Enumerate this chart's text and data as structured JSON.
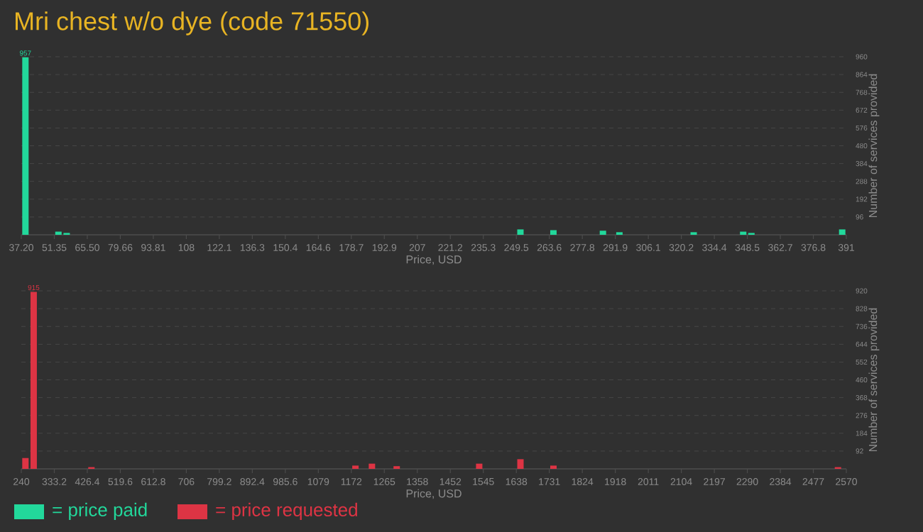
{
  "chart_data": [
    {
      "type": "bar",
      "title": "Mri chest w/o dye (code 71550)",
      "xlabel": "Price, USD",
      "ylabel": "Number of services provided",
      "xlim": [
        37.2,
        391
      ],
      "xticks": [
        {
          "value": 37.2,
          "label": "37.20"
        },
        {
          "value": 51.352,
          "label": "51.35"
        },
        {
          "value": 65.504,
          "label": "65.50"
        },
        {
          "value": 79.656,
          "label": "79.66"
        },
        {
          "value": 93.808,
          "label": "93.81"
        },
        {
          "value": 107.96,
          "label": "108"
        },
        {
          "value": 122.112,
          "label": "122.1"
        },
        {
          "value": 136.264,
          "label": "136.3"
        },
        {
          "value": 150.416,
          "label": "150.4"
        },
        {
          "value": 164.568,
          "label": "164.6"
        },
        {
          "value": 178.72,
          "label": "178.7"
        },
        {
          "value": 192.872,
          "label": "192.9"
        },
        {
          "value": 207.024,
          "label": "207"
        },
        {
          "value": 221.176,
          "label": "221.2"
        },
        {
          "value": 235.328,
          "label": "235.3"
        },
        {
          "value": 249.48,
          "label": "249.5"
        },
        {
          "value": 263.632,
          "label": "263.6"
        },
        {
          "value": 277.784,
          "label": "277.8"
        },
        {
          "value": 291.936,
          "label": "291.9"
        },
        {
          "value": 306.088,
          "label": "306.1"
        },
        {
          "value": 320.24,
          "label": "320.2"
        },
        {
          "value": 334.392,
          "label": "334.4"
        },
        {
          "value": 348.544,
          "label": "348.5"
        },
        {
          "value": 362.696,
          "label": "362.7"
        },
        {
          "value": 376.848,
          "label": "376.8"
        },
        391
      ],
      "ylim": [
        0,
        960
      ],
      "yticks": [
        96,
        192,
        288,
        384,
        480,
        576,
        672,
        768,
        864,
        960
      ],
      "grid": "y",
      "legend": "bottom left",
      "series": [
        {
          "name": "= price paid",
          "color": "#22d89b",
          "x": [
            38.97,
            53.12,
            56.66,
            251.24,
            265.39,
            286.62,
            293.69,
            325.54,
            346.77,
            350.3,
            389.23
          ],
          "values": [
            957,
            17,
            10,
            29,
            25,
            22,
            14,
            14,
            17,
            10,
            29
          ],
          "value_labels": [
            "957",
            null,
            null,
            null,
            null,
            null,
            null,
            null,
            null,
            null,
            null
          ]
        }
      ]
    },
    {
      "type": "bar",
      "xlabel": "Price, USD",
      "ylabel": "Number of services provided",
      "xlim": [
        240,
        2570
      ],
      "xticks": [
        240,
        333.2,
        426.4,
        519.6,
        612.8,
        706,
        799.2,
        892.4,
        985.6,
        {
          "value": 1078.8,
          "label": "1079"
        },
        1172,
        {
          "value": 1265.2,
          "label": "1265"
        },
        {
          "value": 1358.4,
          "label": "1358"
        },
        {
          "value": 1451.6,
          "label": "1452"
        },
        {
          "value": 1544.8,
          "label": "1545"
        },
        1638,
        {
          "value": 1731.2,
          "label": "1731"
        },
        {
          "value": 1824.4,
          "label": "1824"
        },
        {
          "value": 1917.6,
          "label": "1918"
        },
        {
          "value": 2010.8,
          "label": "2011"
        },
        2104,
        {
          "value": 2197.2,
          "label": "2197"
        },
        {
          "value": 2290.4,
          "label": "2290"
        },
        {
          "value": 2383.6,
          "label": "2384"
        },
        {
          "value": 2476.8,
          "label": "2477"
        },
        2570
      ],
      "ylim": [
        0,
        920
      ],
      "yticks": [
        92,
        184,
        276,
        368,
        460,
        552,
        644,
        736,
        828,
        920
      ],
      "grid": "y",
      "legend": "bottom left",
      "series": [
        {
          "name": "= price requested",
          "color": "#dd3444",
          "x": [
            251.65,
            274.95,
            438.05,
            1183.65,
            1230.25,
            1300.15,
            1533.15,
            1649.65,
            1742.85,
            2546.35
          ],
          "values": [
            56,
            915,
            9,
            17,
            27,
            14,
            27,
            50,
            17,
            9
          ],
          "value_labels": [
            null,
            "915",
            null,
            null,
            null,
            null,
            null,
            null,
            null,
            null
          ]
        }
      ]
    }
  ]
}
